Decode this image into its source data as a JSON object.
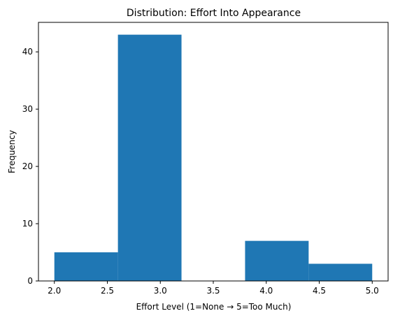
{
  "chart_data": {
    "type": "bar",
    "title": "Distribution: Effort Into Appearance",
    "xlabel": "Effort Level (1=None → 5=Too Much)",
    "ylabel": "Frequency",
    "bins": [
      {
        "start": 2.0,
        "end": 2.6,
        "value": 5
      },
      {
        "start": 2.6,
        "end": 3.2,
        "value": 43
      },
      {
        "start": 3.2,
        "end": 3.8,
        "value": 0
      },
      {
        "start": 3.8,
        "end": 4.4,
        "value": 7
      },
      {
        "start": 4.4,
        "end": 5.0,
        "value": 3
      }
    ],
    "xlim": [
      1.85,
      5.15
    ],
    "ylim": [
      0,
      45.15
    ],
    "xticks": [
      2.0,
      2.5,
      3.0,
      3.5,
      4.0,
      4.5,
      5.0
    ],
    "xtick_labels": [
      "2.0",
      "2.5",
      "3.0",
      "3.5",
      "4.0",
      "4.5",
      "5.0"
    ],
    "yticks": [
      0,
      10,
      20,
      30,
      40
    ],
    "ytick_labels": [
      "0",
      "10",
      "20",
      "30",
      "40"
    ],
    "bar_color": "#1f77b4",
    "grid": false,
    "legend": "none"
  }
}
